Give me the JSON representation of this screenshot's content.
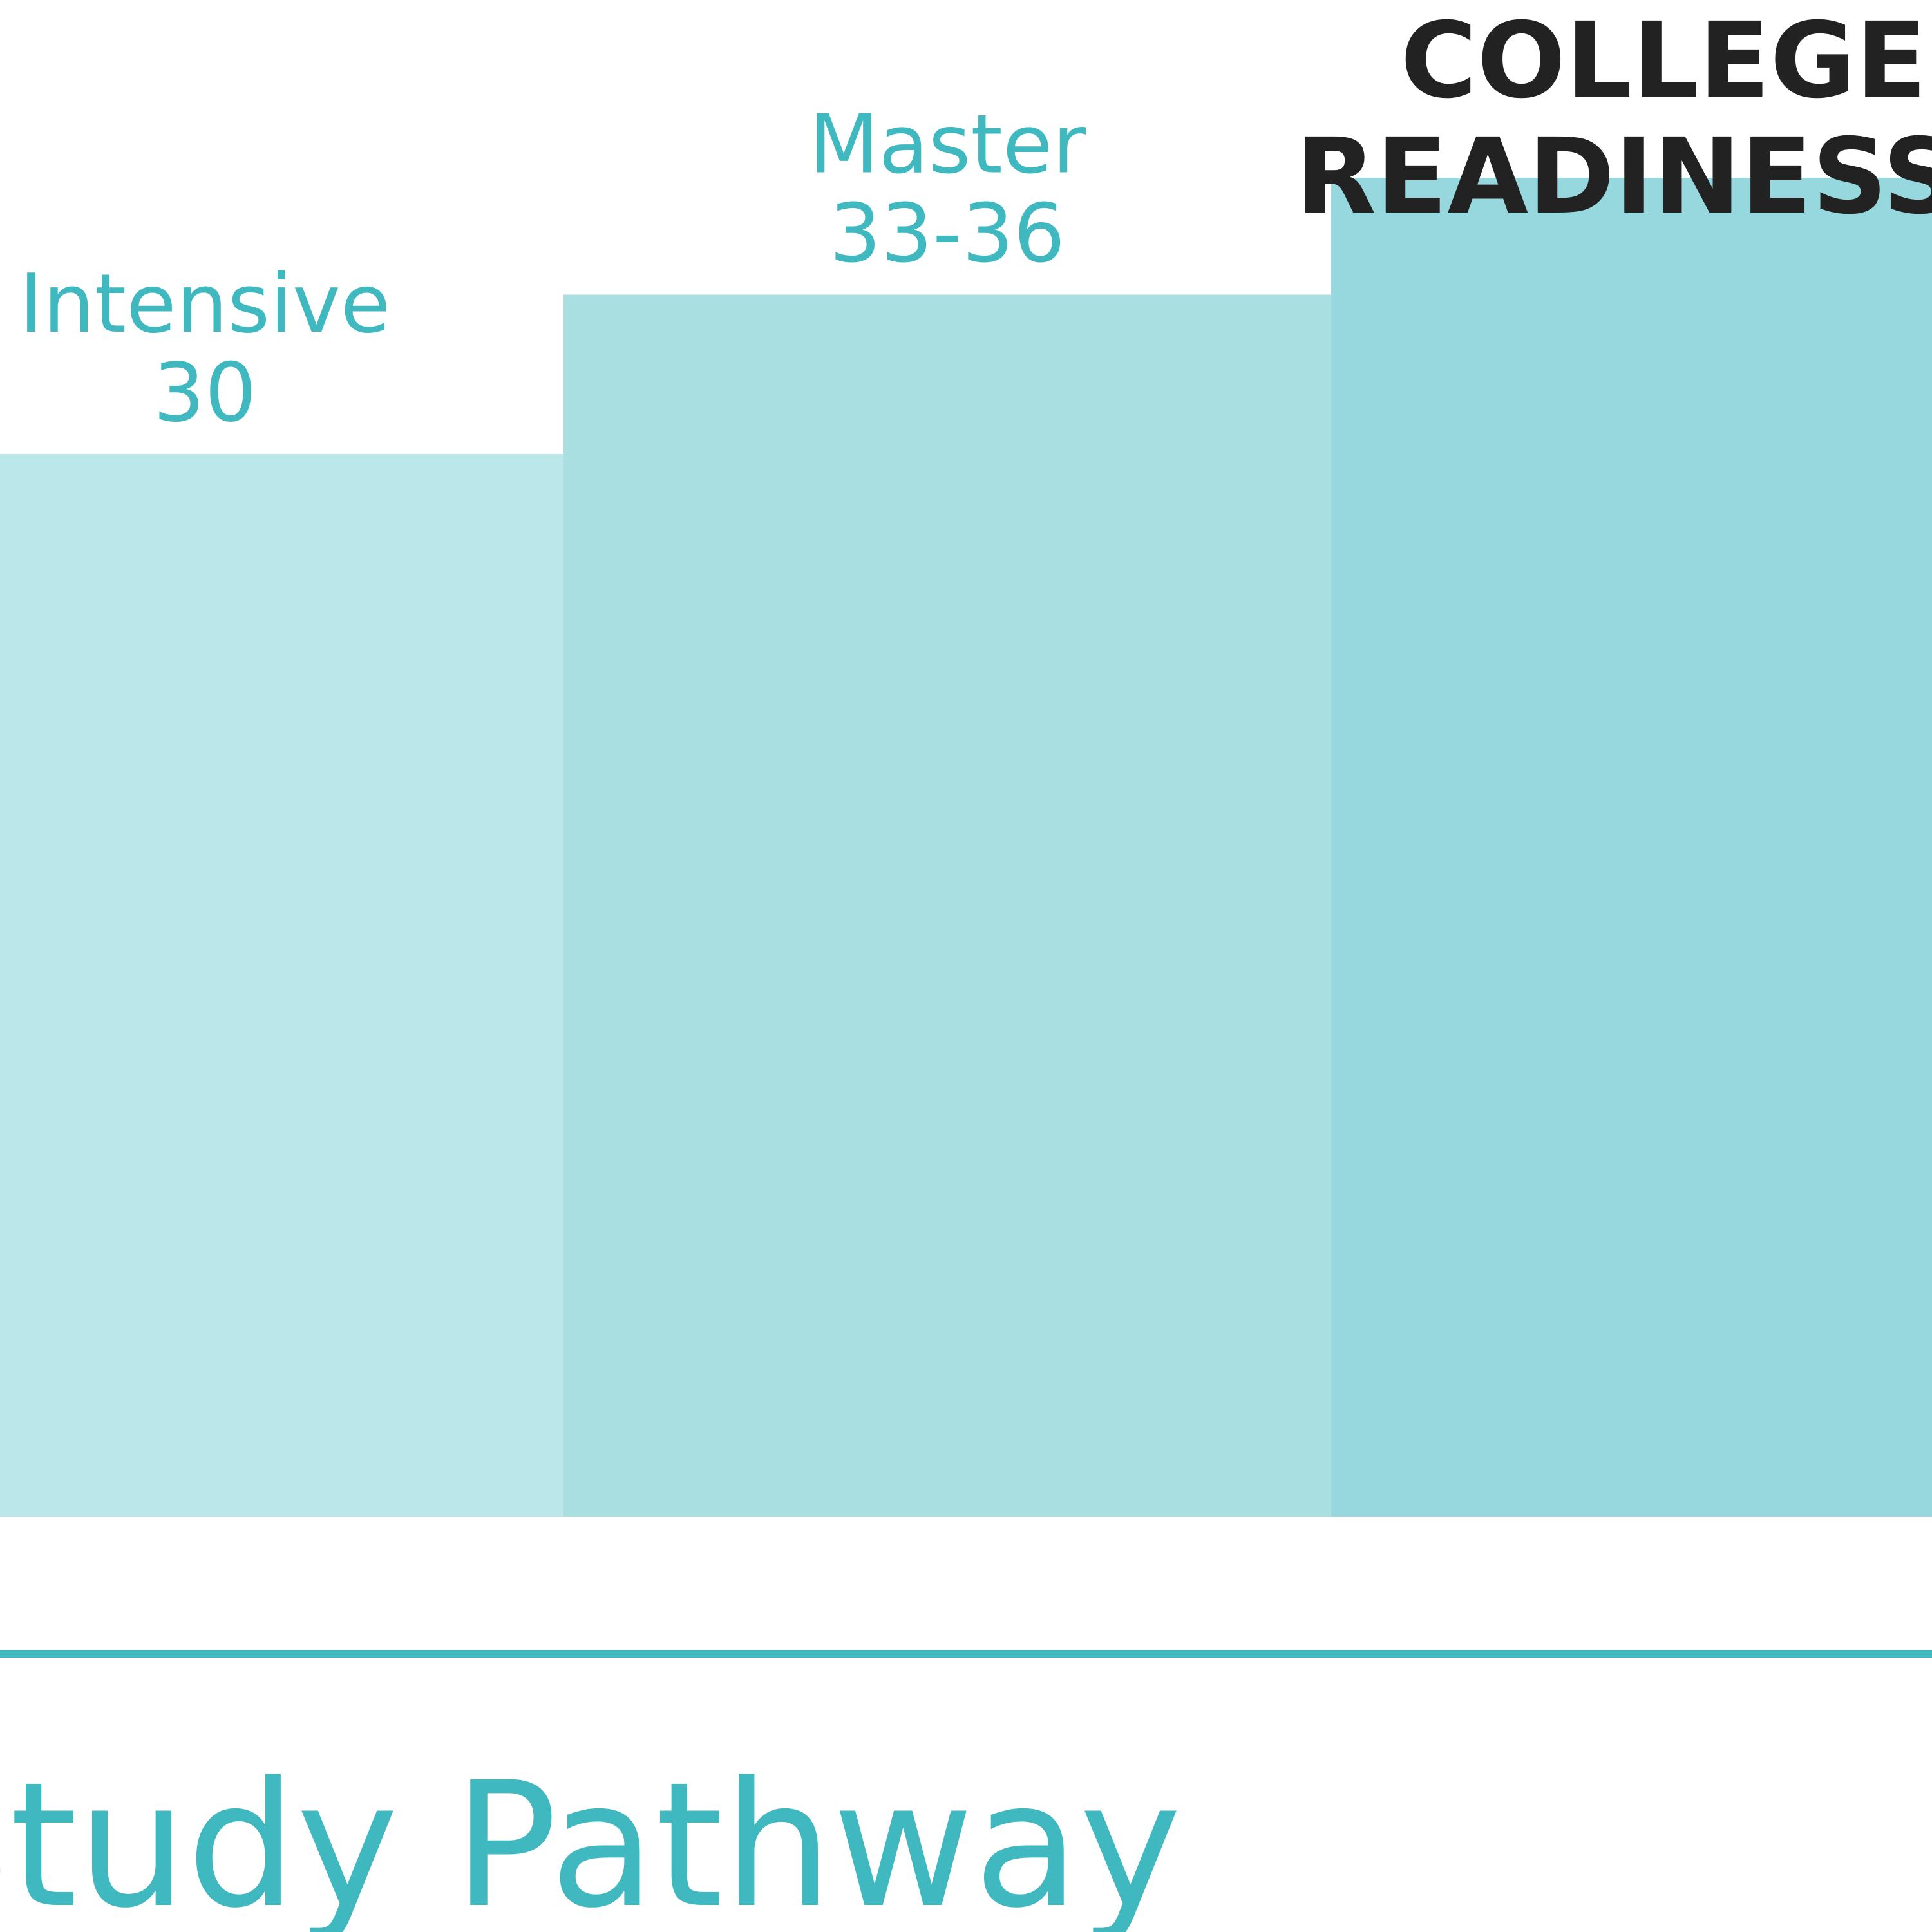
{
  "chart_data": {
    "type": "bar",
    "title": "",
    "xlabel": "",
    "ylabel": "",
    "categories": [
      "Intensive",
      "Master",
      ""
    ],
    "value_labels": [
      "30",
      "33-36",
      ""
    ],
    "values": [
      30,
      34.5,
      37.8
    ],
    "ylim": [
      0,
      38
    ],
    "grid": false,
    "legend": "none",
    "annotation": {
      "line1": "COLLEGE",
      "line2": "READINESS"
    },
    "footer": {
      "text": "Study Pathway"
    },
    "colors": {
      "bars": [
        "#bce7ea",
        "#aadfe2",
        "#97d7de"
      ],
      "label": "#3fb8c0",
      "headline": "#222222",
      "rule": "#3fb8c0"
    }
  }
}
